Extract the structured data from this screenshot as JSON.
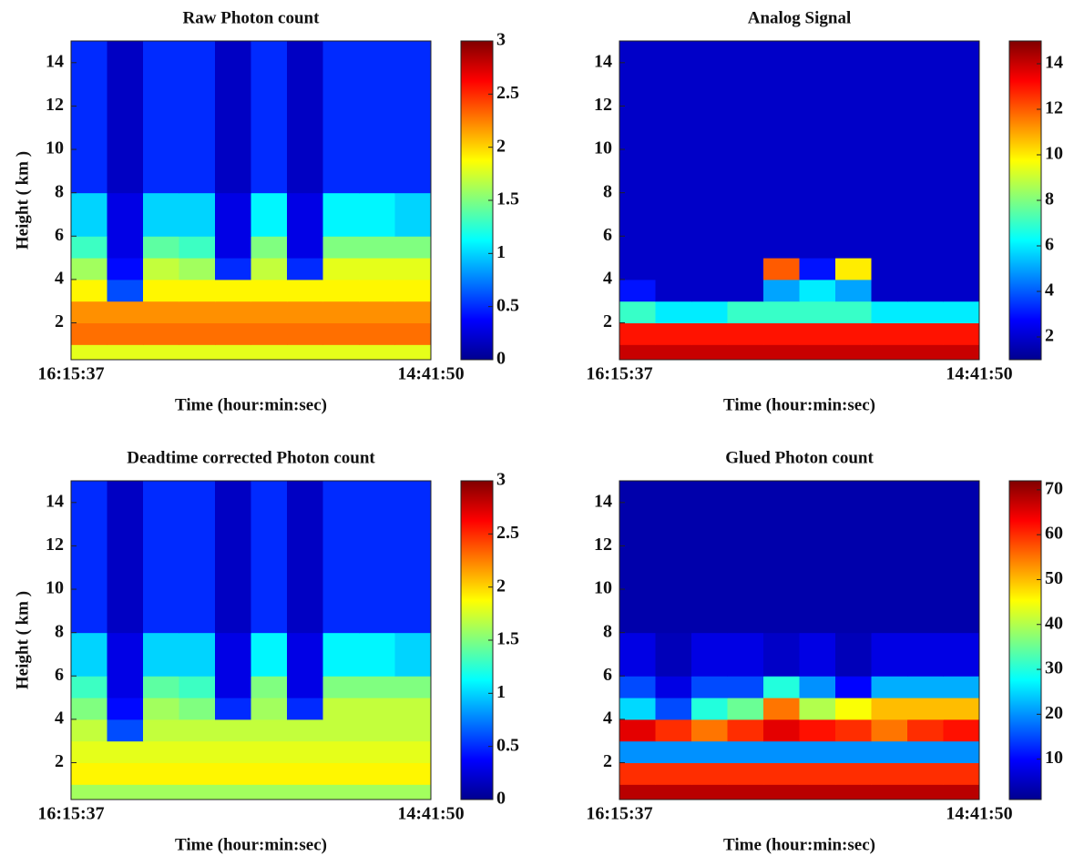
{
  "chart_data": [
    {
      "type": "heatmap",
      "title": "Raw Photon count",
      "xlabel": "Time (hour:min:sec)",
      "ylabel": "Height ( km )",
      "xticks": [
        "16:15:37",
        "14:41:50"
      ],
      "ylim": [
        0.3,
        15
      ],
      "yticks": [
        2,
        4,
        6,
        8,
        10,
        12,
        14
      ],
      "y_bins": [
        0.3,
        1,
        2,
        3,
        4,
        5,
        6,
        8,
        15
      ],
      "colormap": "jet",
      "clim": [
        0,
        3
      ],
      "colorbar_ticks": [
        0,
        0.5,
        1,
        1.5,
        2,
        2.5,
        3
      ],
      "values": [
        [
          1.8,
          1.8,
          1.8,
          1.8,
          1.8,
          1.8,
          1.8,
          1.8,
          1.8,
          1.8
        ],
        [
          2.3,
          2.3,
          2.3,
          2.3,
          2.3,
          2.3,
          2.3,
          2.3,
          2.3,
          2.3
        ],
        [
          2.2,
          2.2,
          2.2,
          2.2,
          2.2,
          2.2,
          2.2,
          2.2,
          2.2,
          2.2
        ],
        [
          1.9,
          0.6,
          1.9,
          1.9,
          1.9,
          1.9,
          1.9,
          1.9,
          1.9,
          1.9
        ],
        [
          1.6,
          0.4,
          1.7,
          1.6,
          0.5,
          1.7,
          0.5,
          1.8,
          1.8,
          1.8
        ],
        [
          1.3,
          0.3,
          1.4,
          1.3,
          0.3,
          1.5,
          0.3,
          1.5,
          1.5,
          1.5
        ],
        [
          1.0,
          0.3,
          1.0,
          1.0,
          0.3,
          1.1,
          0.3,
          1.1,
          1.1,
          1.0
        ],
        [
          0.5,
          0.2,
          0.5,
          0.5,
          0.2,
          0.5,
          0.2,
          0.5,
          0.5,
          0.5
        ]
      ]
    },
    {
      "type": "heatmap",
      "title": "Analog Signal",
      "xlabel": "Time (hour:min:sec)",
      "xticks": [
        "16:15:37",
        "14:41:50"
      ],
      "ylim": [
        0.3,
        15
      ],
      "yticks": [
        2,
        4,
        6,
        8,
        10,
        12,
        14
      ],
      "y_bins": [
        0.3,
        1,
        2,
        3,
        4,
        5,
        6,
        8,
        15
      ],
      "colormap": "jet",
      "clim": [
        1,
        15
      ],
      "colorbar_ticks": [
        2,
        4,
        6,
        8,
        10,
        12,
        14
      ],
      "values": [
        [
          14,
          14,
          14,
          14,
          14,
          14,
          14,
          14,
          14,
          14
        ],
        [
          13,
          13,
          13,
          13,
          13,
          13,
          13,
          13,
          13,
          13
        ],
        [
          7,
          6,
          6,
          7,
          7,
          7,
          7,
          6,
          6,
          6
        ],
        [
          3,
          2,
          2,
          2,
          5,
          6,
          5,
          2,
          2,
          2
        ],
        [
          2,
          2,
          2,
          2,
          12,
          3,
          10,
          2,
          2,
          2
        ],
        [
          2,
          2,
          2,
          2,
          2,
          2,
          2,
          2,
          2,
          2
        ],
        [
          2,
          2,
          2,
          2,
          2,
          2,
          2,
          2,
          2,
          2
        ],
        [
          2,
          2,
          2,
          2,
          2,
          2,
          2,
          2,
          2,
          2
        ]
      ]
    },
    {
      "type": "heatmap",
      "title": "Deadtime corrected Photon count",
      "xlabel": "Time (hour:min:sec)",
      "ylabel": "Height ( km )",
      "xticks": [
        "16:15:37",
        "14:41:50"
      ],
      "ylim": [
        0.3,
        15
      ],
      "yticks": [
        2,
        4,
        6,
        8,
        10,
        12,
        14
      ],
      "y_bins": [
        0.3,
        1,
        2,
        3,
        4,
        5,
        6,
        8,
        15
      ],
      "colormap": "jet",
      "clim": [
        0,
        3
      ],
      "colorbar_ticks": [
        0,
        0.5,
        1,
        1.5,
        2,
        2.5,
        3
      ],
      "values": [
        [
          1.6,
          1.6,
          1.6,
          1.6,
          1.6,
          1.6,
          1.6,
          1.6,
          1.6,
          1.6
        ],
        [
          1.9,
          1.9,
          1.9,
          1.9,
          1.9,
          1.9,
          1.9,
          1.9,
          1.9,
          1.9
        ],
        [
          1.8,
          1.8,
          1.8,
          1.8,
          1.8,
          1.8,
          1.8,
          1.8,
          1.8,
          1.8
        ],
        [
          1.7,
          0.6,
          1.7,
          1.7,
          1.7,
          1.7,
          1.7,
          1.7,
          1.7,
          1.7
        ],
        [
          1.5,
          0.4,
          1.6,
          1.5,
          0.5,
          1.6,
          0.5,
          1.7,
          1.7,
          1.7
        ],
        [
          1.3,
          0.3,
          1.4,
          1.3,
          0.3,
          1.5,
          0.3,
          1.5,
          1.5,
          1.5
        ],
        [
          1.0,
          0.3,
          1.0,
          1.0,
          0.3,
          1.1,
          0.3,
          1.1,
          1.1,
          1.0
        ],
        [
          0.5,
          0.2,
          0.5,
          0.5,
          0.2,
          0.5,
          0.2,
          0.5,
          0.5,
          0.5
        ]
      ]
    },
    {
      "type": "heatmap",
      "title": "Glued Photon count",
      "xlabel": "Time (hour:min:sec)",
      "xticks": [
        "16:15:37",
        "14:41:50"
      ],
      "ylim": [
        0.3,
        15
      ],
      "yticks": [
        2,
        4,
        6,
        8,
        10,
        12,
        14
      ],
      "y_bins": [
        0.3,
        1,
        2,
        3,
        4,
        5,
        6,
        8,
        15
      ],
      "colormap": "jet",
      "clim": [
        1,
        72
      ],
      "colorbar_ticks": [
        10,
        20,
        30,
        40,
        50,
        60,
        70
      ],
      "values": [
        [
          68,
          68,
          68,
          68,
          68,
          68,
          68,
          68,
          68,
          68
        ],
        [
          60,
          60,
          60,
          60,
          60,
          60,
          60,
          60,
          60,
          60
        ],
        [
          20,
          20,
          20,
          20,
          20,
          20,
          20,
          20,
          20,
          20
        ],
        [
          65,
          60,
          55,
          60,
          65,
          62,
          60,
          55,
          60,
          62
        ],
        [
          25,
          15,
          30,
          35,
          55,
          40,
          45,
          50,
          50,
          50
        ],
        [
          15,
          8,
          15,
          15,
          30,
          20,
          10,
          22,
          22,
          22
        ],
        [
          8,
          5,
          8,
          8,
          6,
          8,
          5,
          8,
          8,
          8
        ],
        [
          4,
          4,
          4,
          4,
          4,
          4,
          4,
          4,
          4,
          4
        ]
      ]
    }
  ]
}
